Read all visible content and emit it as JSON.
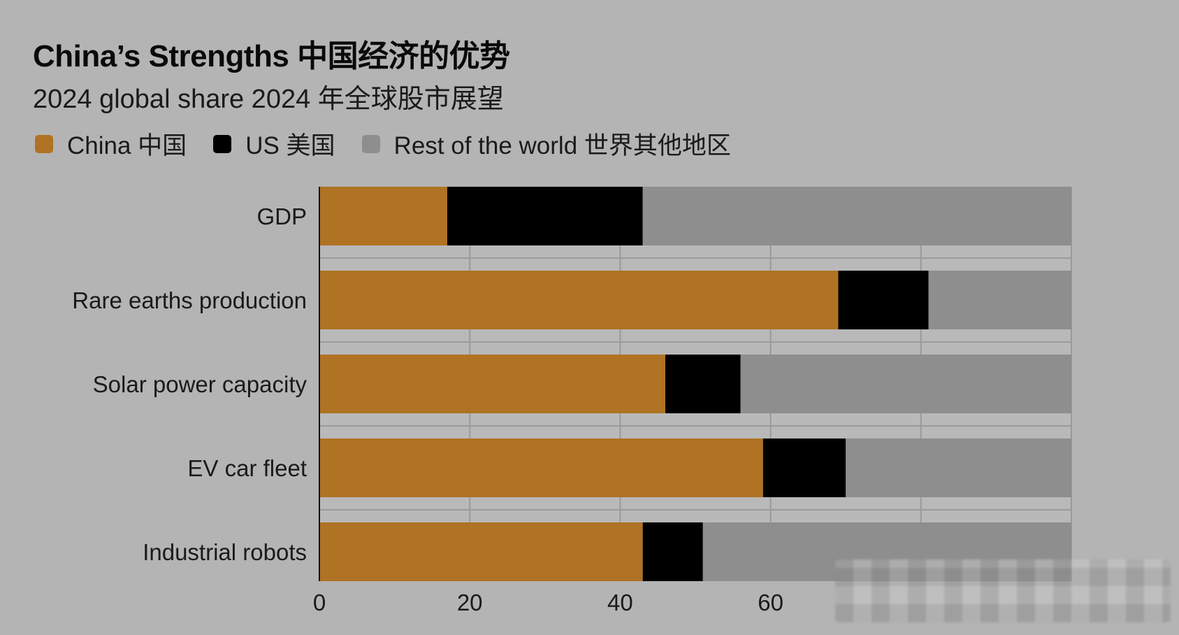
{
  "header": {
    "title": "China’s Strengths  中国经济的优势",
    "subtitle": "2024 global share  2024 年全球股市展望"
  },
  "legend": [
    {
      "label": "China  中国",
      "color": "#b07223"
    },
    {
      "label": "US  美国",
      "color": "#000000"
    },
    {
      "label": "Rest of the world  世界其他地区",
      "color": "#8e8e8e"
    }
  ],
  "chart_data": {
    "type": "bar",
    "orientation": "horizontal",
    "stacked": true,
    "categories": [
      "GDP",
      "Rare earths production",
      "Solar power capacity",
      "EV car fleet",
      "Industrial robots"
    ],
    "series": [
      {
        "name": "China  中国",
        "color": "#b07223",
        "values": [
          17,
          69,
          46,
          59,
          43
        ]
      },
      {
        "name": "US  美国",
        "color": "#000000",
        "values": [
          26,
          12,
          10,
          11,
          8
        ]
      },
      {
        "name": "Rest of the world  世界其他地区",
        "color": "#8e8e8e",
        "values": [
          57,
          19,
          44,
          30,
          49
        ]
      }
    ],
    "xlim": [
      0,
      100
    ],
    "xticks": [
      0,
      20,
      40,
      60
    ],
    "xtick_labels": [
      "0",
      "20",
      "40",
      "60"
    ],
    "grid": true,
    "legend_position": "top-left"
  }
}
